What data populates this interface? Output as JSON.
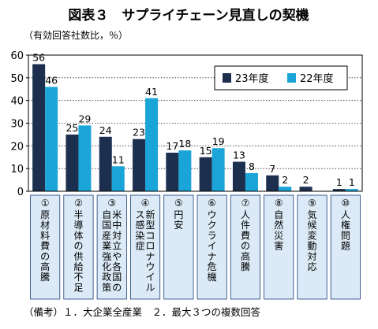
{
  "chart_data": {
    "type": "bar",
    "title": "図表３　サプライチェーン見直しの契機",
    "unit_label": "（有効回答社数比，％）",
    "ylim": [
      0,
      60
    ],
    "yticks": [
      "0",
      "10",
      "20",
      "30",
      "40",
      "50",
      "60"
    ],
    "grid": true,
    "legend_placement": "top-right",
    "categories": [
      {
        "num": "①",
        "label": "原材料費の高騰"
      },
      {
        "num": "②",
        "label": "半導体の供給不足"
      },
      {
        "num": "③",
        "label": "米中対立や各国の自国産業強化政策"
      },
      {
        "num": "④",
        "label": "新型コロナウイルス感染症"
      },
      {
        "num": "⑤",
        "label": "円安"
      },
      {
        "num": "⑥",
        "label": "ウクライナ危機"
      },
      {
        "num": "⑦",
        "label": "人件費の高騰"
      },
      {
        "num": "⑧",
        "label": "自然災害"
      },
      {
        "num": "⑨",
        "label": "気候変動対応"
      },
      {
        "num": "⑩",
        "label": "人権問題"
      }
    ],
    "series": [
      {
        "name": "23年度",
        "color": "#1c2f4e",
        "values": [
          56,
          25,
          24,
          23,
          17,
          15,
          13,
          7,
          2,
          1
        ],
        "labels": [
          "56",
          "25",
          "24",
          "23",
          "17",
          "15",
          "13",
          "7",
          "2",
          "1"
        ]
      },
      {
        "name": "22年度",
        "color": "#1aa4d8",
        "values": [
          46,
          29,
          11,
          41,
          18,
          19,
          8,
          2,
          null,
          1
        ],
        "labels": [
          "46",
          "29",
          "11",
          "41",
          "18",
          "19",
          "8",
          "2",
          "",
          "1"
        ]
      }
    ],
    "note": "（備考）１．大企業全産業　２．最大３つの複数回答"
  }
}
